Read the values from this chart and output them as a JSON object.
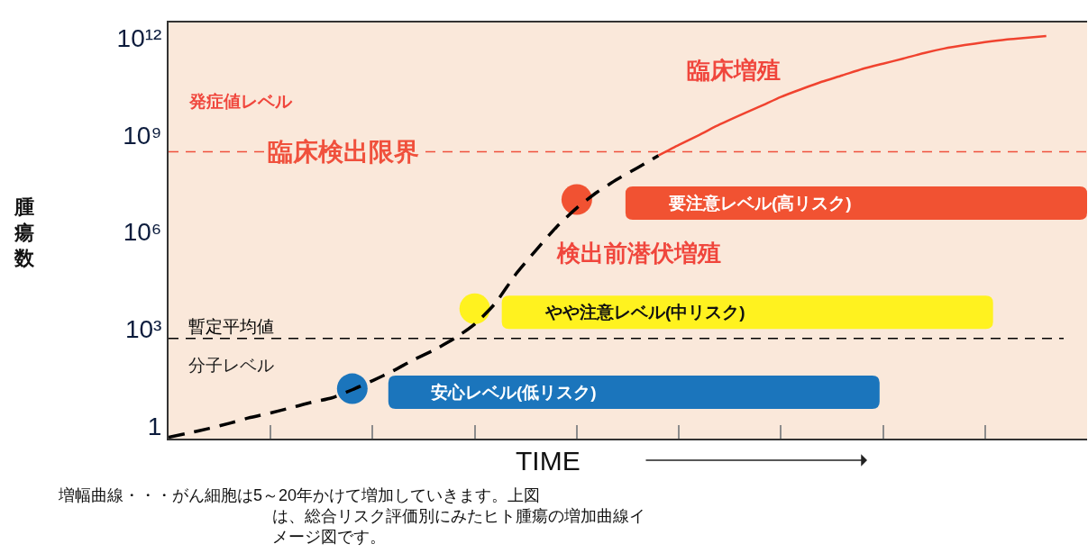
{
  "chart_data": {
    "type": "line",
    "categories": [
      null,
      null,
      null,
      null,
      null,
      null,
      null,
      null,
      null,
      null,
      null,
      null,
      null,
      null,
      null,
      null,
      null,
      null,
      null,
      null,
      null,
      null,
      null,
      null,
      null,
      null,
      null,
      null,
      null,
      null,
      null,
      null,
      null,
      null,
      null,
      null,
      null,
      null,
      null,
      null,
      null,
      null,
      null,
      null,
      null,
      null
    ],
    "xlabel": "TIME",
    "ylabel": "腫瘍数",
    "log": true,
    "ylim": [
      0.4,
      3000000000000
    ],
    "yticks": [
      1,
      {
        "value": 1000,
        "label": "10³"
      },
      {
        "value": 1000000,
        "label": "10⁶"
      },
      {
        "value": 1000000000,
        "label": "10⁹"
      },
      {
        "value": 1000000000000,
        "label": "10¹²"
      }
    ],
    "tick_labels": "y",
    "series": [
      {
        "color": "#000000",
        "line_style": "dashed",
        "marker": "none",
        "values": [
          0.44,
          0.6,
          0.83,
          1.2,
          1.8,
          2.5,
          3.6,
          5.3,
          7.3,
          13,
          25,
          50,
          110,
          220,
          500,
          1400,
          6100,
          48000,
          270000,
          1400000,
          5500000,
          17000000,
          43000000,
          98000000,
          230000000,
          null,
          null,
          null,
          null,
          null,
          null,
          null,
          null,
          null,
          null,
          null,
          null,
          null,
          null,
          null,
          null,
          null,
          null,
          null,
          null,
          null
        ]
      },
      {
        "color": "#f0432f",
        "line_style": "solid",
        "marker": "none",
        "values": [
          null,
          null,
          null,
          null,
          null,
          null,
          null,
          null,
          null,
          null,
          null,
          null,
          null,
          null,
          null,
          null,
          null,
          null,
          null,
          null,
          null,
          null,
          null,
          null,
          230000000,
          490000000,
          1000000000,
          2100000000,
          4100000000,
          7700000000,
          15000000000,
          26000000000,
          44000000000,
          69000000000,
          110000000000,
          160000000000,
          230000000000,
          340000000000,
          470000000000,
          600000000000,
          740000000000,
          890000000000,
          1000000000000,
          1150000000000,
          null,
          null
        ]
      },
      {
        "type": "scatter",
        "name": "安心レベル(低リスク)",
        "color": "#1b75bc",
        "marker": "circle",
        "values": [
          null,
          null,
          null,
          null,
          null,
          null,
          null,
          null,
          null,
          14,
          null,
          null,
          null,
          null,
          null,
          null,
          null,
          null,
          null,
          null,
          null,
          null,
          null,
          null,
          null,
          null,
          null,
          null,
          null,
          null,
          null,
          null,
          null,
          null,
          null,
          null,
          null,
          null,
          null,
          null,
          null,
          null,
          null,
          null,
          null,
          null
        ]
      },
      {
        "type": "scatter",
        "name": "やや注意レベル(中リスク)",
        "color": "#fff21f",
        "marker": "circle",
        "values": [
          null,
          null,
          null,
          null,
          null,
          null,
          null,
          null,
          null,
          null,
          null,
          null,
          null,
          null,
          null,
          4200,
          null,
          null,
          null,
          null,
          null,
          null,
          null,
          null,
          null,
          null,
          null,
          null,
          null,
          null,
          null,
          null,
          null,
          null,
          null,
          null,
          null,
          null,
          null,
          null,
          null,
          null,
          null,
          null,
          null,
          null
        ]
      },
      {
        "type": "scatter",
        "name": "要注意レベル(高リスク)",
        "color": "#f15232",
        "marker": "circle",
        "values": [
          null,
          null,
          null,
          null,
          null,
          null,
          null,
          null,
          null,
          null,
          null,
          null,
          null,
          null,
          null,
          null,
          null,
          null,
          null,
          null,
          10000000,
          null,
          null,
          null,
          null,
          null,
          null,
          null,
          null,
          null,
          null,
          null,
          null,
          null,
          null,
          null,
          null,
          null,
          null,
          null,
          null,
          null,
          null,
          null,
          null,
          null
        ]
      }
    ],
    "ref_lines": [
      {
        "axis": "y",
        "value": 300000000,
        "label": "臨床検出限界",
        "color": "#f0503c",
        "line_style": "dashed"
      },
      {
        "axis": "y",
        "value": 500,
        "label": "暫定平均値",
        "color": "#000000",
        "line_style": "dashed"
      }
    ],
    "annotations": [
      "発症値レベル",
      "分子レベル",
      "臨床増殖",
      "検出前潜伏増殖",
      "増幅曲線・・・がん細胞は5～20年かけて増加していきます。上図は、総合リスク評価別にみたヒト腫瘍の増加曲線イメージ図です。"
    ],
    "grid": false,
    "legend": false
  }
}
